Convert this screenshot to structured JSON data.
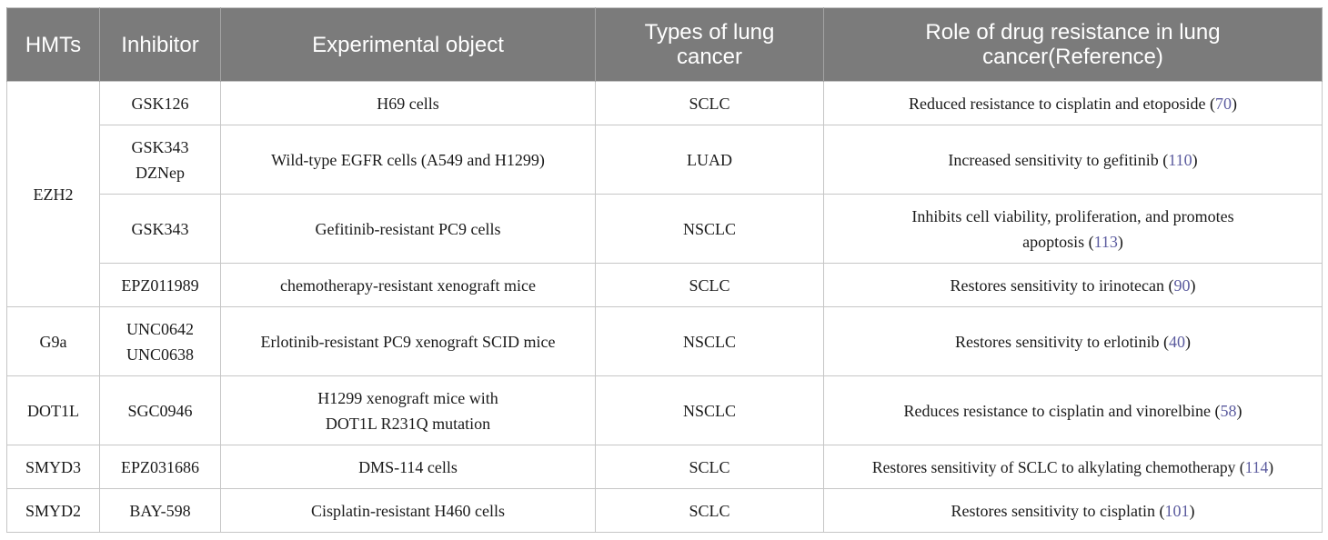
{
  "headers": {
    "hmts": "HMTs",
    "inhibitor": "Inhibitor",
    "object": "Experimental object",
    "types": "Types of lung cancer",
    "role": "Role of drug resistance in lung cancer(Reference)"
  },
  "groups": {
    "ezh2": "EZH2",
    "g9a": "G9a",
    "dot1l": "DOT1L",
    "smyd3": "SMYD3",
    "smyd2": "SMYD2"
  },
  "rows": [
    {
      "inhibitor": "GSK126",
      "object": "H69 cells",
      "type": "SCLC",
      "role": "Reduced resistance to cisplatin and etoposide (",
      "ref": "70",
      "close": ")"
    },
    {
      "inhibitor": "GSK343 DZNep",
      "object": "Wild-type EGFR cells (A549 and H1299)",
      "type": "LUAD",
      "role": "Increased sensitivity to gefitinib (",
      "ref": "110",
      "close": ")"
    },
    {
      "inhibitor": "GSK343",
      "object": "Gefitinib-resistant PC9 cells",
      "type": "NSCLC",
      "role": "Inhibits cell viability, proliferation, and promotes apoptosis (",
      "ref": "113",
      "close": ")"
    },
    {
      "inhibitor": "EPZ011989",
      "object": "chemotherapy-resistant xenograft mice",
      "type": "SCLC",
      "role": "Restores sensitivity to irinotecan (",
      "ref": "90",
      "close": ")"
    },
    {
      "inhibitor": "UNC0642 UNC0638",
      "object": "Erlotinib-resistant PC9 xenograft SCID mice",
      "type": "NSCLC",
      "role": "Restores sensitivity to erlotinib (",
      "ref": "40",
      "close": ")"
    },
    {
      "inhibitor": "SGC0946",
      "object": "H1299 xenograft mice with DOT1L R231Q mutation",
      "type": "NSCLC",
      "role": "Reduces resistance to cisplatin and vinorelbine (",
      "ref": "58",
      "close": ")"
    },
    {
      "inhibitor": "EPZ031686",
      "object": "DMS-114 cells",
      "type": "SCLC",
      "role": "Restores sensitivity of SCLC to alkylating chemotherapy (",
      "ref": "114",
      "close": ")"
    },
    {
      "inhibitor": "BAY-598",
      "object": "Cisplatin-resistant H460 cells",
      "type": "SCLC",
      "role": "Restores sensitivity to cisplatin (",
      "ref": "101",
      "close": ")"
    }
  ],
  "colors": {
    "header_bg": "#7b7b7b",
    "header_text": "#ffffff",
    "reference_link": "#5b5b9e",
    "border": "#c6c6c6"
  }
}
